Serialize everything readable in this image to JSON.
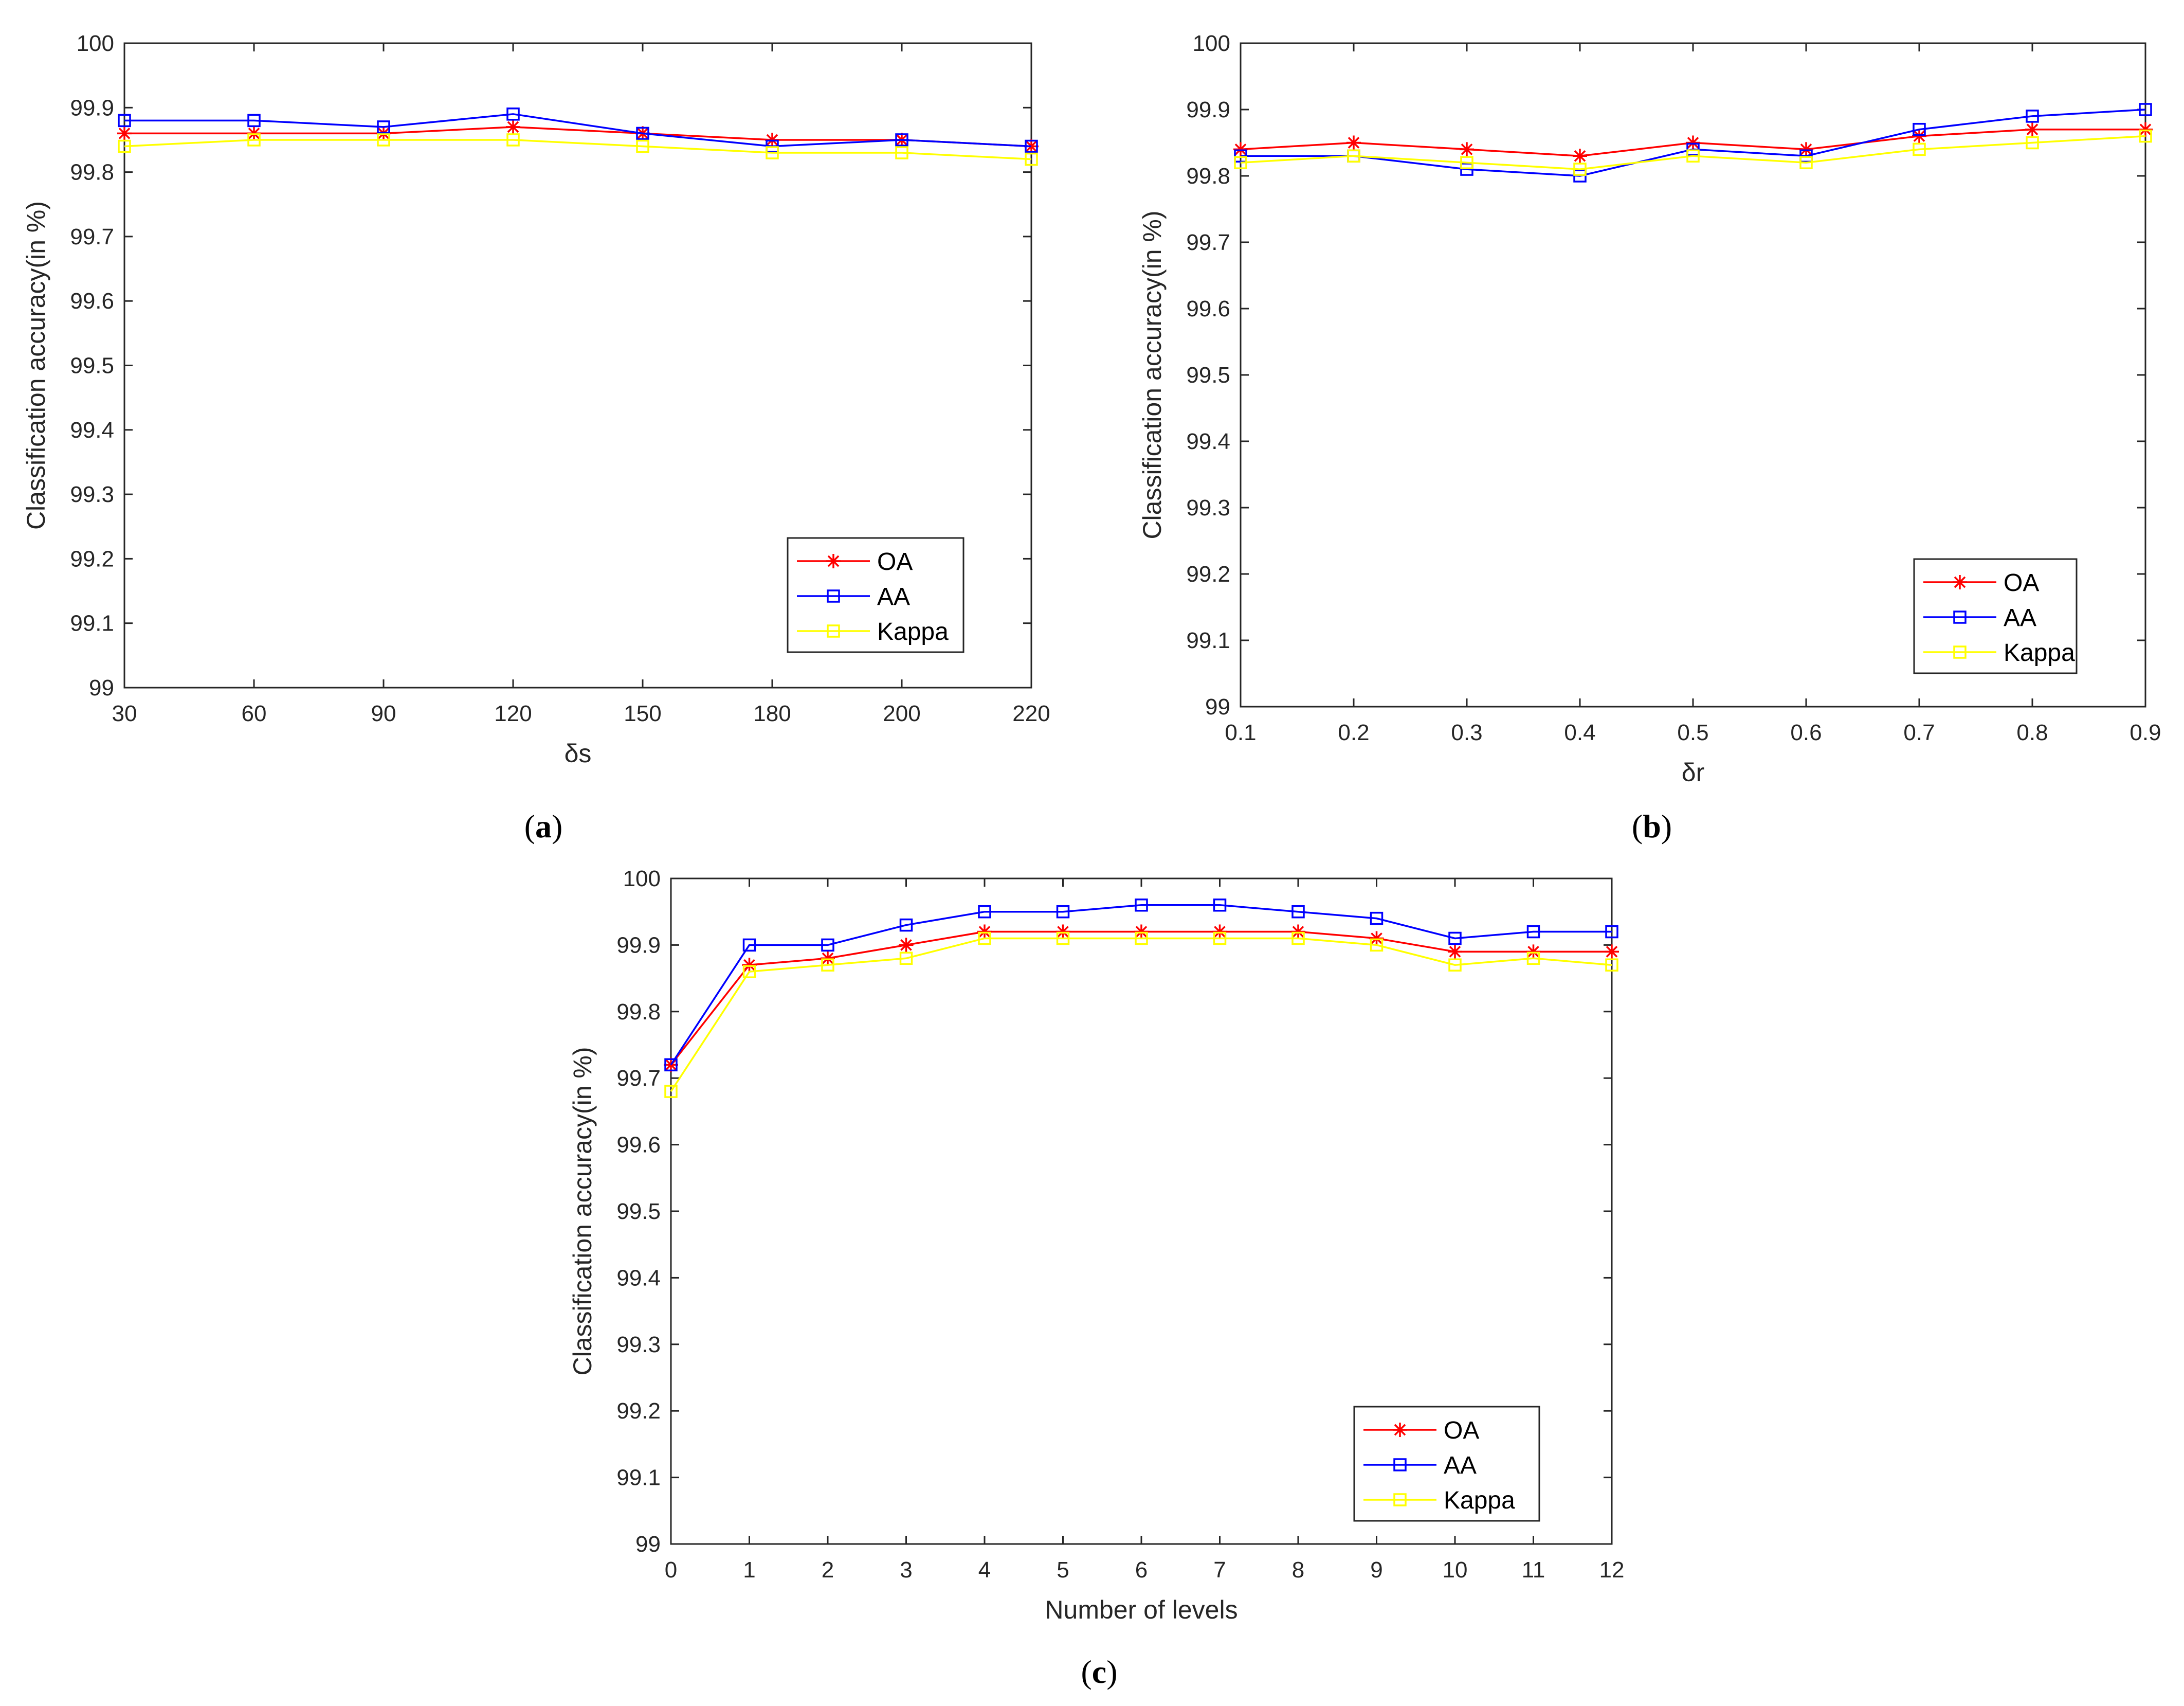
{
  "chart_data": [
    {
      "type": "line",
      "caption": "a",
      "title": "",
      "xlabel": "δs",
      "ylabel": "Classification accuracy(in %)",
      "x_mode": "categorical",
      "categories": [
        "30",
        "60",
        "90",
        "120",
        "150",
        "180",
        "200",
        "220"
      ],
      "ylim": [
        99,
        100
      ],
      "yticks": [
        "99",
        "99.1",
        "99.2",
        "99.3",
        "99.4",
        "99.5",
        "99.6",
        "99.7",
        "99.8",
        "99.9",
        "100"
      ],
      "grid": false,
      "legend_position": "bottom-right",
      "series": [
        {
          "name": "OA",
          "color": "#ff0000",
          "marker": "star",
          "values": [
            99.86,
            99.86,
            99.86,
            99.87,
            99.86,
            99.85,
            99.85,
            99.84
          ]
        },
        {
          "name": "AA",
          "color": "#0000ff",
          "marker": "square",
          "values": [
            99.88,
            99.88,
            99.87,
            99.89,
            99.86,
            99.84,
            99.85,
            99.84
          ]
        },
        {
          "name": "Kappa",
          "color": "#ffff00",
          "marker": "square",
          "values": [
            99.84,
            99.85,
            99.85,
            99.85,
            99.84,
            99.83,
            99.83,
            99.82
          ]
        }
      ]
    },
    {
      "type": "line",
      "caption": "b",
      "title": "",
      "xlabel": "δr",
      "ylabel": "Classification accuracy(in %)",
      "x_mode": "categorical",
      "categories": [
        "0.1",
        "0.2",
        "0.3",
        "0.4",
        "0.5",
        "0.6",
        "0.7",
        "0.8",
        "0.9"
      ],
      "ylim": [
        99,
        100
      ],
      "yticks": [
        "99",
        "99.1",
        "99.2",
        "99.3",
        "99.4",
        "99.5",
        "99.6",
        "99.7",
        "99.8",
        "99.9",
        "100"
      ],
      "grid": false,
      "legend_position": "bottom-right",
      "series": [
        {
          "name": "OA",
          "color": "#ff0000",
          "marker": "star",
          "values": [
            99.84,
            99.85,
            99.84,
            99.83,
            99.85,
            99.84,
            99.86,
            99.87,
            99.87
          ]
        },
        {
          "name": "AA",
          "color": "#0000ff",
          "marker": "square",
          "values": [
            99.83,
            99.83,
            99.81,
            99.8,
            99.84,
            99.83,
            99.87,
            99.89,
            99.9
          ]
        },
        {
          "name": "Kappa",
          "color": "#ffff00",
          "marker": "square",
          "values": [
            99.82,
            99.83,
            99.82,
            99.81,
            99.83,
            99.82,
            99.84,
            99.85,
            99.86
          ]
        }
      ]
    },
    {
      "type": "line",
      "caption": "c",
      "title": "",
      "xlabel": "Number of levels",
      "ylabel": "Classification accuracy(in %)",
      "x_mode": "categorical",
      "categories": [
        "0",
        "1",
        "2",
        "3",
        "4",
        "5",
        "6",
        "7",
        "8",
        "9",
        "10",
        "11",
        "12"
      ],
      "ylim": [
        99,
        100
      ],
      "yticks": [
        "99",
        "99.1",
        "99.2",
        "99.3",
        "99.4",
        "99.5",
        "99.6",
        "99.7",
        "99.8",
        "99.9",
        "100"
      ],
      "grid": false,
      "legend_position": "bottom-right",
      "series": [
        {
          "name": "OA",
          "color": "#ff0000",
          "marker": "star",
          "values": [
            99.72,
            99.87,
            99.88,
            99.9,
            99.92,
            99.92,
            99.92,
            99.92,
            99.92,
            99.91,
            99.89,
            99.89,
            99.89
          ]
        },
        {
          "name": "AA",
          "color": "#0000ff",
          "marker": "square",
          "values": [
            99.72,
            99.9,
            99.9,
            99.93,
            99.95,
            99.95,
            99.96,
            99.96,
            99.95,
            99.94,
            99.91,
            99.92,
            99.92
          ]
        },
        {
          "name": "Kappa",
          "color": "#ffff00",
          "marker": "square",
          "values": [
            99.68,
            99.86,
            99.87,
            99.88,
            99.91,
            99.91,
            99.91,
            99.91,
            99.91,
            99.9,
            99.87,
            99.88,
            99.87
          ]
        }
      ]
    }
  ]
}
